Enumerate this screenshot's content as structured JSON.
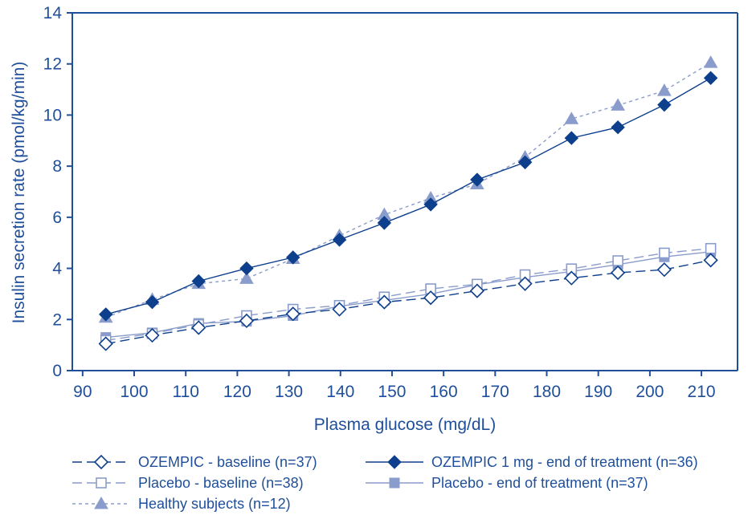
{
  "chart_data": {
    "type": "line",
    "title": "",
    "xlabel": "Plasma glucose (mg/dL)",
    "ylabel": "Insulin secretion rate (pmol/kg/min)",
    "xlim": [
      88,
      217
    ],
    "ylim": [
      0,
      14
    ],
    "xticks": [
      90,
      100,
      110,
      120,
      130,
      140,
      150,
      160,
      170,
      180,
      190,
      200,
      210
    ],
    "yticks": [
      0,
      2,
      4,
      6,
      8,
      10,
      12,
      14
    ],
    "grid": false,
    "legend_position": "bottom",
    "colors": {
      "dark": "#0d3f8c",
      "light": "#8a9ccb",
      "text": "#1f4f9a"
    },
    "series": [
      {
        "name": "OZEMPIC - baseline (n=37)",
        "marker": "diamond-open",
        "line": "dashed",
        "color": "#0d3f8c",
        "x": [
          94.5,
          103.5,
          112.5,
          121.8,
          130.8,
          139.8,
          148.5,
          157.5,
          166.5,
          175.8,
          184.8,
          193.8,
          202.8,
          211.8
        ],
        "y": [
          1.05,
          1.38,
          1.68,
          1.95,
          2.22,
          2.4,
          2.68,
          2.85,
          3.12,
          3.4,
          3.62,
          3.83,
          3.95,
          4.32
        ]
      },
      {
        "name": "OZEMPIC 1 mg - end of treatment (n=36)",
        "marker": "diamond-filled",
        "line": "solid",
        "color": "#0d3f8c",
        "x": [
          94.5,
          103.5,
          112.5,
          121.8,
          130.8,
          139.8,
          148.5,
          157.5,
          166.5,
          175.8,
          184.8,
          193.8,
          202.8,
          211.8
        ],
        "y": [
          2.2,
          2.68,
          3.5,
          4.0,
          4.43,
          5.12,
          5.78,
          6.5,
          7.47,
          8.15,
          9.1,
          9.52,
          10.4,
          11.45
        ]
      },
      {
        "name": "Placebo - baseline (n=38)",
        "marker": "square-open",
        "line": "dashed",
        "color": "#8a9ccb",
        "x": [
          94.5,
          103.5,
          112.5,
          121.8,
          130.8,
          139.8,
          148.5,
          157.5,
          166.5,
          175.8,
          184.8,
          193.8,
          202.8,
          211.8
        ],
        "y": [
          1.18,
          1.45,
          1.8,
          2.15,
          2.4,
          2.55,
          2.88,
          3.2,
          3.38,
          3.75,
          3.98,
          4.3,
          4.6,
          4.78
        ]
      },
      {
        "name": "Placebo - end of treatment (n=37)",
        "marker": "square-filled",
        "line": "solid",
        "color": "#8a9ccb",
        "x": [
          94.5,
          103.5,
          112.5,
          121.8,
          130.8,
          139.8,
          148.5,
          157.5,
          166.5,
          175.8,
          184.8,
          193.8,
          202.8,
          211.8
        ],
        "y": [
          1.3,
          1.48,
          1.85,
          1.93,
          2.15,
          2.52,
          2.75,
          3.0,
          3.36,
          3.65,
          3.88,
          4.15,
          4.45,
          4.65
        ]
      },
      {
        "name": "Healthy subjects (n=12)",
        "marker": "triangle-filled",
        "line": "dotted",
        "color": "#8a9ccb",
        "x": [
          94.5,
          103.5,
          112.5,
          121.8,
          130.8,
          139.8,
          148.5,
          157.5,
          166.5,
          175.8,
          184.8,
          193.8,
          202.8,
          211.8
        ],
        "y": [
          2.08,
          2.78,
          3.4,
          3.6,
          4.38,
          5.28,
          6.1,
          6.75,
          7.3,
          8.35,
          9.85,
          10.38,
          10.95,
          12.05
        ]
      }
    ]
  }
}
